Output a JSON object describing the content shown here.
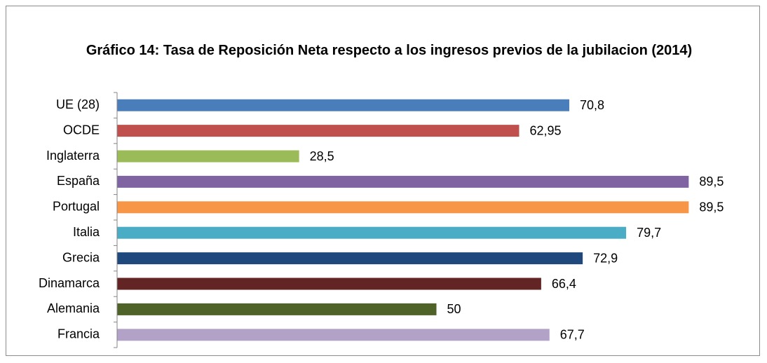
{
  "chart_data": {
    "type": "bar",
    "orientation": "horizontal",
    "title": "Gráfico 14: Tasa de Reposición Neta respecto a los ingresos previos de la jubilacion (2014)",
    "categories": [
      "UE (28)",
      "OCDE",
      "Inglaterra",
      "España",
      "Portugal",
      "Italia",
      "Grecia",
      "Dinamarca",
      "Alemania",
      "Francia"
    ],
    "values": [
      70.8,
      62.95,
      28.5,
      89.5,
      89.5,
      79.7,
      72.9,
      66.4,
      50,
      67.7
    ],
    "value_labels": [
      "70,8",
      "62,95",
      "28,5",
      "89,5",
      "89,5",
      "79,7",
      "72,9",
      "66,4",
      "50",
      "67,7"
    ],
    "colors": [
      "#4a7ebb",
      "#c0504d",
      "#9bbb59",
      "#8064a2",
      "#f79646",
      "#4bacc6",
      "#1f497d",
      "#632523",
      "#4f6228",
      "#b3a2c7"
    ],
    "xlim": [
      0,
      100
    ]
  }
}
